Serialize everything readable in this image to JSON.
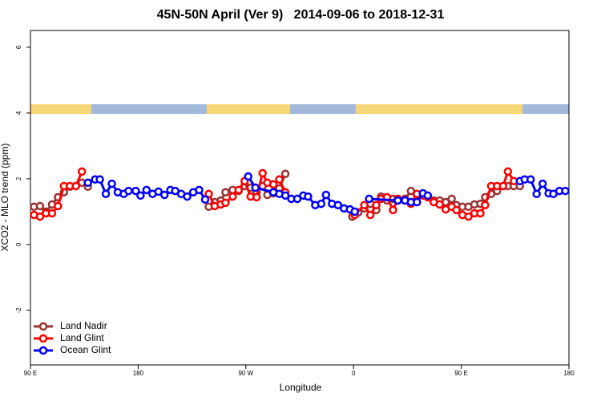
{
  "chart_data": {
    "type": "line",
    "title": "45N-50N April (Ver 9)   2014-09-06 to 2018-12-31",
    "xlabel": "Longitude",
    "ylabel": "XCO2 - MLO trend (ppm)",
    "xlim": [
      90,
      540
    ],
    "ylim": [
      -3.66,
      6.51
    ],
    "xticks": [
      {
        "value": 90,
        "label": "90 E"
      },
      {
        "value": 180,
        "label": "180"
      },
      {
        "value": 270,
        "label": "90 W"
      },
      {
        "value": 360,
        "label": "0"
      },
      {
        "value": 450,
        "label": "90 E"
      },
      {
        "value": 540,
        "label": "180"
      }
    ],
    "yticks": [
      -2,
      0,
      2,
      4,
      6
    ],
    "legend": "lower left",
    "series": [
      {
        "name": "Land Nadir",
        "color": "#993333",
        "x": [
          93,
          98,
          103,
          108,
          113,
          118,
          123,
          128,
          133,
          138,
          null,
          239,
          244,
          249,
          253,
          259,
          264,
          269,
          274,
          279,
          284,
          288,
          293,
          298,
          303,
          null,
          359,
          364,
          369,
          374,
          379,
          383,
          388,
          393,
          397,
          403,
          408,
          413,
          418,
          422,
          427,
          432,
          437,
          442,
          446,
          451,
          456,
          461,
          466,
          470,
          475,
          480,
          485,
          489,
          494,
          499
        ],
        "values": [
          1.15,
          1.17,
          1.0,
          1.22,
          1.44,
          1.59,
          1.76,
          1.78,
          1.88,
          1.76,
          null,
          1.15,
          1.29,
          1.34,
          1.59,
          1.66,
          1.63,
          1.78,
          1.73,
          1.59,
          1.78,
          1.51,
          1.56,
          1.71,
          2.15,
          null,
          0.85,
          0.98,
          1.1,
          1.24,
          1.05,
          1.46,
          1.34,
          1.39,
          1.34,
          1.39,
          1.63,
          1.51,
          1.49,
          1.46,
          1.34,
          1.34,
          1.29,
          1.39,
          1.2,
          1.15,
          1.15,
          1.22,
          1.24,
          1.44,
          1.54,
          1.63,
          1.78,
          1.78,
          1.78,
          1.78
        ]
      },
      {
        "name": "Land Glint",
        "color": "#ff0000",
        "x": [
          93,
          98,
          103,
          108,
          113,
          118,
          123,
          128,
          133,
          null,
          239,
          244,
          249,
          253,
          259,
          264,
          269,
          274,
          279,
          284,
          288,
          293,
          298,
          303,
          null,
          361,
          369,
          374,
          379,
          383,
          388,
          393,
          397,
          403,
          408,
          413,
          418,
          422,
          427,
          432,
          437,
          442,
          446,
          451,
          456,
          461,
          466,
          470,
          475,
          480,
          485,
          489,
          494
        ],
        "values": [
          0.9,
          0.85,
          0.95,
          0.95,
          1.17,
          1.78,
          1.78,
          1.78,
          2.22,
          null,
          1.54,
          1.17,
          1.22,
          1.27,
          1.46,
          1.66,
          1.93,
          1.46,
          1.44,
          2.17,
          1.88,
          1.83,
          1.98,
          1.59,
          null,
          0.9,
          1.2,
          0.9,
          1.2,
          1.39,
          1.44,
          1.05,
          1.39,
          1.34,
          1.24,
          1.54,
          1.49,
          1.44,
          1.29,
          1.22,
          1.07,
          1.15,
          1.05,
          0.9,
          0.85,
          0.95,
          0.95,
          1.2,
          1.78,
          1.78,
          1.78,
          2.22,
          1.93
        ]
      },
      {
        "name": "Ocean Glint",
        "color": "#0000ff",
        "x": [
          138,
          144,
          148,
          153,
          158,
          163,
          168,
          172,
          178,
          182,
          187,
          192,
          197,
          202,
          207,
          211,
          216,
          221,
          226,
          231,
          236,
          null,
          272,
          278,
          293,
          298,
          303,
          308,
          313,
          318,
          322,
          328,
          333,
          337,
          342,
          347,
          352,
          357,
          361,
          null,
          373,
          397,
          403,
          408,
          413,
          418,
          422,
          null,
          499,
          503,
          508,
          513,
          518,
          523,
          527,
          532,
          537
        ],
        "values": [
          1.88,
          1.98,
          1.98,
          1.54,
          1.85,
          1.59,
          1.54,
          1.63,
          1.63,
          1.49,
          1.66,
          1.54,
          1.61,
          1.51,
          1.66,
          1.63,
          1.54,
          1.46,
          1.59,
          1.66,
          1.37,
          null,
          2.07,
          1.73,
          1.59,
          1.54,
          1.49,
          1.39,
          1.39,
          1.49,
          1.46,
          1.2,
          1.24,
          1.51,
          1.24,
          1.2,
          1.1,
          1.07,
          1.0,
          null,
          1.39,
          1.34,
          1.34,
          1.29,
          1.29,
          1.56,
          1.49,
          null,
          1.93,
          1.98,
          1.98,
          1.54,
          1.85,
          1.56,
          1.54,
          1.63,
          1.63
        ]
      }
    ]
  }
}
